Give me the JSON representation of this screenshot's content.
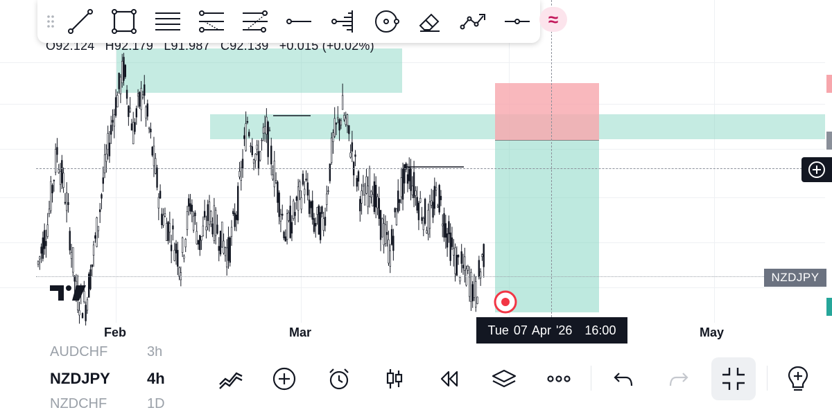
{
  "ohlc": {
    "open": "O92.124",
    "high": "H92.179",
    "low": "L91.987",
    "close": "C92.139",
    "change": "+0.015 (+0.02%)"
  },
  "toolbar": {
    "tools": [
      "trend-line",
      "rectangle",
      "fib-retracement",
      "fib-channel",
      "pitchfork",
      "horizontal-ray",
      "volume-profile",
      "measure-circle",
      "eraser",
      "path",
      "price-line",
      "elliott-wave"
    ]
  },
  "x_axis": {
    "labels": [
      "Feb",
      "Mar",
      "May"
    ],
    "crosshair_time": {
      "date": "Tue 07 Apr '26",
      "time": "16:00"
    }
  },
  "price_scale": {
    "symbol_label": "NZDJPY"
  },
  "bottom_bar": {
    "symbols": [
      {
        "name": "AUDCHF",
        "tf": "3h"
      },
      {
        "name": "NZDJPY",
        "tf": "4h"
      },
      {
        "name": "NZDCHF",
        "tf": "1D"
      }
    ]
  },
  "colors": {
    "zone": "#7ed3bf",
    "stop": "#f7a6ac",
    "target_red": "#f23645",
    "bg": "#ffffff",
    "dark_pill": "#131722"
  },
  "price_series": {
    "note_units": "NZDJPY 4h closes",
    "values": [
      91.0,
      91.4,
      92.1,
      91.6,
      90.7,
      90.6,
      91.2,
      91.9,
      92.5,
      92.9,
      92.3,
      92.7,
      92.1,
      91.5,
      91.3,
      91.0,
      91.6,
      91.2,
      91.5,
      91.3,
      91.1,
      91.6,
      92.4,
      92.0,
      92.3,
      91.8,
      91.3,
      91.5,
      91.8,
      91.4,
      91.4,
      92.2,
      92.5,
      92.1,
      91.6,
      91.8,
      91.4,
      91.1,
      91.7,
      91.9,
      91.6,
      91.4,
      91.7,
      91.3,
      91.0,
      90.9,
      90.7,
      91.2
    ]
  }
}
